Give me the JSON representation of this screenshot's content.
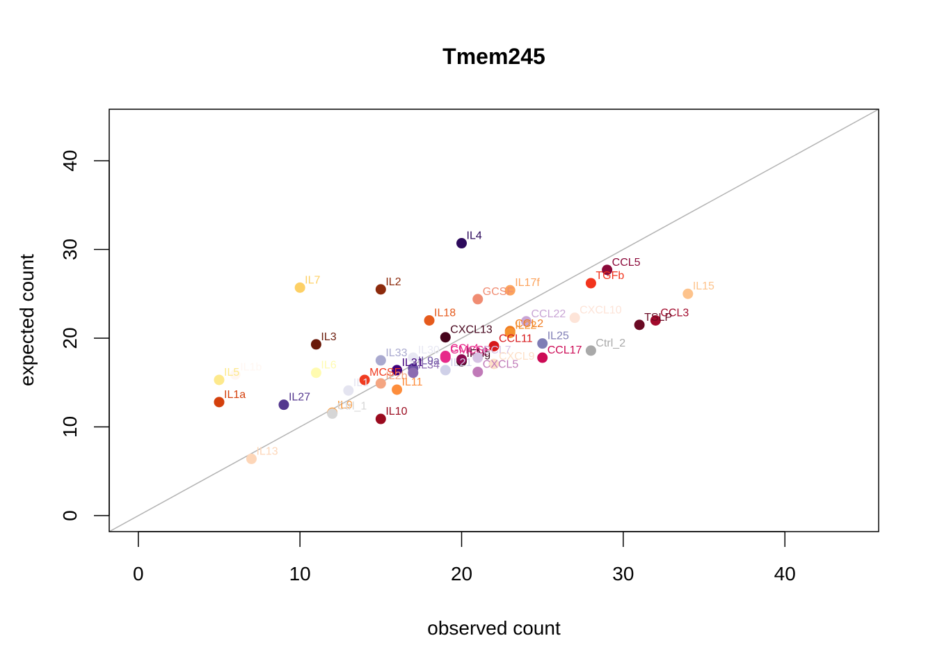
{
  "chart_data": {
    "type": "scatter",
    "title": "Tmem245",
    "xlabel": "observed count",
    "ylabel": "expected count",
    "xlim": [
      -1.8,
      45.8
    ],
    "ylim": [
      -1.8,
      45.8
    ],
    "x_ticks": [
      0,
      10,
      20,
      30,
      40
    ],
    "y_ticks": [
      0,
      10,
      20,
      30,
      40
    ],
    "x_tick_labels": [
      "0",
      "10",
      "20",
      "30",
      "40"
    ],
    "y_tick_labels": [
      "0",
      "10",
      "20",
      "30",
      "40"
    ],
    "reference_line": {
      "type": "identity",
      "color": "#b3b3b3"
    },
    "grid": false,
    "points": [
      {
        "label": "IL4",
        "x": 20,
        "y": 30.7,
        "color": "#2d0a5c"
      },
      {
        "label": "CCL5",
        "x": 29,
        "y": 27.7,
        "color": "#8b0a3a"
      },
      {
        "label": "TGFb",
        "x": 28,
        "y": 26.2,
        "color": "#f2341d"
      },
      {
        "label": "IL15",
        "x": 34,
        "y": 25.0,
        "color": "#fdc38c"
      },
      {
        "label": "IL7",
        "x": 10,
        "y": 25.7,
        "color": "#fdd065"
      },
      {
        "label": "IL2",
        "x": 15,
        "y": 25.5,
        "color": "#8c2a0c"
      },
      {
        "label": "IL17f",
        "x": 23,
        "y": 25.4,
        "color": "#fca35c"
      },
      {
        "label": "GCSF",
        "x": 21,
        "y": 24.4,
        "color": "#f08c72"
      },
      {
        "label": "CCL22",
        "x": 24,
        "y": 21.9,
        "color": "#c9a5d5"
      },
      {
        "label": "CXCL10",
        "x": 27,
        "y": 22.3,
        "color": "#fde4d8"
      },
      {
        "label": "CCL3",
        "x": 32,
        "y": 22.0,
        "color": "#a20a2c"
      },
      {
        "label": "TSLP",
        "x": 31,
        "y": 21.5,
        "color": "#6a0a24"
      },
      {
        "label": "IL18",
        "x": 18,
        "y": 22.0,
        "color": "#e55a1c"
      },
      {
        "label": "CCL2",
        "x": 23,
        "y": 20.8,
        "color": "#f07a1e"
      },
      {
        "label": "IL22",
        "x": 23,
        "y": 20.6,
        "color": "#f4912e"
      },
      {
        "label": "CXCL13",
        "x": 19,
        "y": 20.1,
        "color": "#46041c"
      },
      {
        "label": "IL25",
        "x": 25,
        "y": 19.4,
        "color": "#7f7db5"
      },
      {
        "label": "Ctrl_2",
        "x": 28,
        "y": 18.6,
        "color": "#a9a9a9"
      },
      {
        "label": "CCL17",
        "x": 25,
        "y": 17.8,
        "color": "#cc0a55"
      },
      {
        "label": "IL3",
        "x": 11,
        "y": 19.3,
        "color": "#6a1a0a"
      },
      {
        "label": "IL1b",
        "x": 6,
        "y": 15.9,
        "color": "#fff7f2"
      },
      {
        "label": "IL5",
        "x": 5,
        "y": 15.3,
        "color": "#fde98c"
      },
      {
        "label": "IL6",
        "x": 11,
        "y": 16.1,
        "color": "#fffbb0"
      },
      {
        "label": "IL33",
        "x": 15,
        "y": 17.5,
        "color": "#a9a9cf"
      },
      {
        "label": "IL30",
        "x": 17,
        "y": 17.8,
        "color": "#e8e8f3"
      },
      {
        "label": "CCL4",
        "x": 19,
        "y": 18.0,
        "color": "#e7298a"
      },
      {
        "label": "IFNg",
        "x": 20,
        "y": 17.4,
        "color": "#3d0a1e"
      },
      {
        "label": "IL12",
        "x": 20,
        "y": 17.6,
        "color": "#8b0a50"
      },
      {
        "label": "GMCSF",
        "x": 19,
        "y": 17.8,
        "color": "#e7298a"
      },
      {
        "label": "CCL11",
        "x": 22,
        "y": 19.1,
        "color": "#d7191c"
      },
      {
        "label": "CCL7",
        "x": 21,
        "y": 17.8,
        "color": "#d6c2e4"
      },
      {
        "label": "CXCL9",
        "x": 22,
        "y": 17.1,
        "color": "#fde0c8"
      },
      {
        "label": "CXCL5",
        "x": 21,
        "y": 16.2,
        "color": "#c07ab8"
      },
      {
        "label": "IL21",
        "x": 19,
        "y": 16.4,
        "color": "#cfd0e8"
      },
      {
        "label": "IL9a",
        "x": 17,
        "y": 16.6,
        "color": "#6a51a3"
      },
      {
        "label": "IL31",
        "x": 16,
        "y": 16.4,
        "color": "#3f007d"
      },
      {
        "label": "IL34",
        "x": 17,
        "y": 16.1,
        "color": "#8c6bb1"
      },
      {
        "label": "MCSF",
        "x": 14,
        "y": 15.3,
        "color": "#f03b20"
      },
      {
        "label": "IL2b",
        "x": 15,
        "y": 14.9,
        "color": "#f4a582"
      },
      {
        "label": "IL11",
        "x": 16,
        "y": 14.2,
        "color": "#fd8d3c"
      },
      {
        "label": "IL1",
        "x": 13,
        "y": 14.1,
        "color": "#e4e4f0"
      },
      {
        "label": "IL1a",
        "x": 5,
        "y": 12.8,
        "color": "#d4400c"
      },
      {
        "label": "IL27",
        "x": 9,
        "y": 12.5,
        "color": "#54388f"
      },
      {
        "label": "IL9",
        "x": 12,
        "y": 11.6,
        "color": "#fd9a3a"
      },
      {
        "label": "Ctrl_1",
        "x": 12,
        "y": 11.5,
        "color": "#d6d6d6"
      },
      {
        "label": "IL10",
        "x": 15,
        "y": 10.9,
        "color": "#9a0a1e"
      },
      {
        "label": "IL13",
        "x": 7,
        "y": 6.4,
        "color": "#fdd6b8"
      }
    ]
  }
}
